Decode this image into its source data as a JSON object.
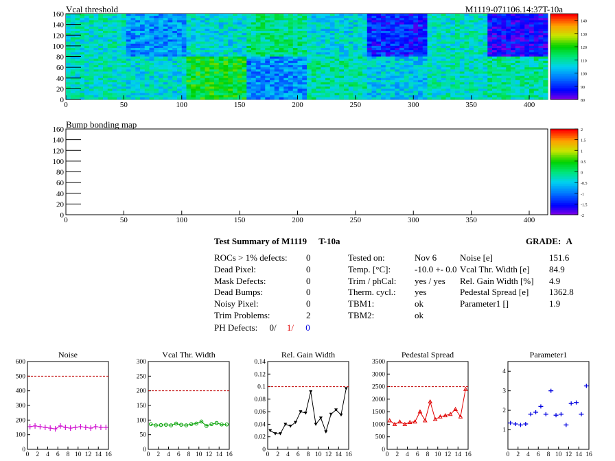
{
  "module_id": "M1119-071106.14:37T-10a",
  "colors": {
    "noise": "#d010d0",
    "vcal": "#00a000",
    "gain": "#000000",
    "pedestal": "#e00000",
    "param": "#0000e0",
    "ref": "#c00000"
  },
  "summary": {
    "title": "Test Summary of M1119",
    "tag": "T-10a",
    "grade_label": "GRADE:",
    "grade": "A",
    "defects": [
      {
        "label": "ROCs > 1% defects:",
        "value": "0"
      },
      {
        "label": "Dead Pixel:",
        "value": "0"
      },
      {
        "label": "Mask Defects:",
        "value": "0"
      },
      {
        "label": "Dead Bumps:",
        "value": "0"
      },
      {
        "label": "Noisy Pixel:",
        "value": "0"
      },
      {
        "label": "Trim Problems:",
        "value": "2"
      }
    ],
    "ph_label": "PH Defects:",
    "ph_values": [
      "0/",
      "1/",
      "0"
    ],
    "conditions": [
      {
        "label": "Tested on:",
        "value": "Nov 6"
      },
      {
        "label": "Temp. [°C]:",
        "value": "-10.0 +- 0.0"
      },
      {
        "label": "Trim / phCal:",
        "value": "yes / yes"
      },
      {
        "label": "Therm. cycl.:",
        "value": "yes"
      },
      {
        "label": "TBM1:",
        "value": "ok"
      },
      {
        "label": "TBM2:",
        "value": "ok"
      }
    ],
    "results": [
      {
        "label": "Noise [e]",
        "value": "151.6"
      },
      {
        "label": "Vcal Thr. Width [e]",
        "value": "84.9"
      },
      {
        "label": "Rel. Gain Width [%]",
        "value": "4.9"
      },
      {
        "label": "Pedestal Spread [e]",
        "value": "1362.8"
      },
      {
        "label": "Parameter1 []",
        "value": "1.9"
      }
    ]
  },
  "chart_data": [
    {
      "type": "heatmap",
      "title": "Vcal threshold",
      "xlim": [
        0,
        416
      ],
      "ylim": [
        0,
        160
      ],
      "xticks": [
        "0",
        "50",
        "100",
        "150",
        "200",
        "250",
        "300",
        "350",
        "400"
      ],
      "yticks": [
        "0",
        "20",
        "40",
        "60",
        "80",
        "100",
        "120",
        "140",
        "160"
      ],
      "zticks": [
        "80",
        "90",
        "100",
        "110",
        "120",
        "130",
        "140"
      ],
      "zlim": [
        80,
        145
      ],
      "roc_means_top": [
        108,
        99,
        106,
        112,
        106,
        89,
        108,
        86
      ],
      "roc_means_bottom": [
        108,
        106,
        118,
        98,
        110,
        104,
        108,
        110
      ]
    },
    {
      "type": "heatmap",
      "title": "Bump bonding map",
      "xlim": [
        0,
        416
      ],
      "ylim": [
        0,
        160
      ],
      "xticks": [
        "0",
        "50",
        "100",
        "150",
        "200",
        "250",
        "300",
        "350",
        "400"
      ],
      "yticks": [
        "0",
        "20",
        "40",
        "60",
        "80",
        "100",
        "120",
        "140",
        "160"
      ],
      "zticks": [
        "-2",
        "-1.5",
        "-1",
        "-0.5",
        "0",
        "0.5",
        "1",
        "1.5",
        "2"
      ],
      "zlim": [
        -2,
        2
      ]
    },
    {
      "type": "line",
      "title": "Noise",
      "series_color": "noise",
      "marker": "cross",
      "xlim": [
        0,
        16
      ],
      "ylim": [
        0,
        600
      ],
      "xticks": [
        "0",
        "2",
        "4",
        "6",
        "8",
        "10",
        "12",
        "14",
        "16"
      ],
      "yticks": [
        "0",
        "100",
        "200",
        "300",
        "400",
        "500",
        "600"
      ],
      "reference": 500,
      "x": [
        0,
        1,
        2,
        3,
        4,
        5,
        6,
        7,
        8,
        9,
        10,
        11,
        12,
        13,
        14,
        15
      ],
      "values": [
        155,
        160,
        155,
        150,
        145,
        140,
        160,
        150,
        145,
        150,
        155,
        150,
        145,
        155,
        150,
        150
      ]
    },
    {
      "type": "line",
      "title": "Vcal Thr. Width",
      "series_color": "vcal",
      "marker": "circle",
      "xlim": [
        0,
        16
      ],
      "ylim": [
        0,
        300
      ],
      "xticks": [
        "0",
        "2",
        "4",
        "6",
        "8",
        "10",
        "12",
        "14",
        "16"
      ],
      "yticks": [
        "0",
        "50",
        "100",
        "150",
        "200",
        "250",
        "300"
      ],
      "reference": 200,
      "x": [
        0,
        1,
        2,
        3,
        4,
        5,
        6,
        7,
        8,
        9,
        10,
        11,
        12,
        13,
        14,
        15
      ],
      "values": [
        86,
        82,
        83,
        84,
        82,
        88,
        84,
        82,
        86,
        88,
        95,
        80,
        86,
        90,
        85,
        85
      ]
    },
    {
      "type": "line",
      "title": "Rel. Gain Width",
      "series_color": "gain",
      "marker": "triangle-down",
      "xlim": [
        0,
        16
      ],
      "ylim": [
        0,
        0.14
      ],
      "xticks": [
        "0",
        "2",
        "4",
        "6",
        "8",
        "10",
        "12",
        "14",
        "16"
      ],
      "yticks": [
        "0",
        "0.02",
        "0.04",
        "0.06",
        "0.08",
        "0.1",
        "0.12",
        "0.14"
      ],
      "reference": 0.1,
      "x": [
        0,
        1,
        2,
        3,
        4,
        5,
        6,
        7,
        8,
        9,
        10,
        11,
        12,
        13,
        14,
        15
      ],
      "values": [
        0.03,
        0.025,
        0.025,
        0.04,
        0.037,
        0.043,
        0.06,
        0.058,
        0.092,
        0.04,
        0.05,
        0.028,
        0.056,
        0.063,
        0.055,
        0.097
      ]
    },
    {
      "type": "line",
      "title": "Pedestal Spread",
      "series_color": "pedestal",
      "marker": "triangle-up",
      "xlim": [
        0,
        16
      ],
      "ylim": [
        0,
        3500
      ],
      "xticks": [
        "0",
        "2",
        "4",
        "6",
        "8",
        "10",
        "12",
        "14",
        "16"
      ],
      "yticks": [
        "0",
        "500",
        "1000",
        "1500",
        "2000",
        "2500",
        "3000",
        "3500"
      ],
      "reference": 2500,
      "x": [
        0,
        1,
        2,
        3,
        4,
        5,
        6,
        7,
        8,
        9,
        10,
        11,
        12,
        13,
        14,
        15
      ],
      "values": [
        1150,
        1000,
        1100,
        1000,
        1080,
        1100,
        1500,
        1150,
        1900,
        1200,
        1300,
        1350,
        1400,
        1600,
        1300,
        2400
      ]
    },
    {
      "type": "scatter",
      "title": "Parameter1",
      "series_color": "param",
      "marker": "plus",
      "xlim": [
        0,
        16
      ],
      "ylim": [
        0,
        4.5
      ],
      "xticks": [
        "0",
        "2",
        "4",
        "6",
        "8",
        "10",
        "12",
        "14",
        "16"
      ],
      "yticks": [
        "1",
        "2",
        "3",
        "4"
      ],
      "x": [
        0,
        1,
        2,
        3,
        4,
        5,
        6,
        7,
        8,
        9,
        10,
        11,
        12,
        13,
        14,
        15
      ],
      "values": [
        1.35,
        1.3,
        1.25,
        1.3,
        1.8,
        1.9,
        2.2,
        1.8,
        3.0,
        1.75,
        1.8,
        1.25,
        2.35,
        2.4,
        1.8,
        3.25
      ]
    }
  ]
}
